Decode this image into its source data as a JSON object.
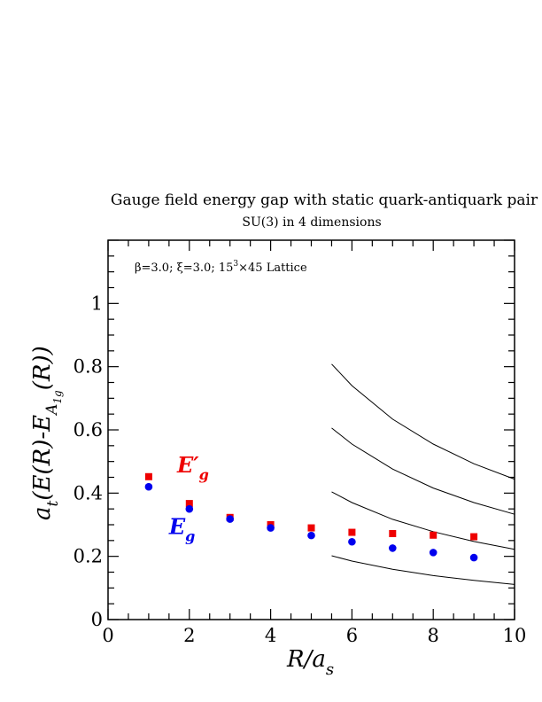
{
  "chart_data": {
    "type": "scatter",
    "title": "Gauge field energy gap with static quark-antiquark pair",
    "subtitle": "SU(3) in 4 dimensions",
    "annotation": {
      "text_pre": "β=3.0;  ξ=3.0; 15",
      "superscript": "3",
      "text_post": "×45 Lattice"
    },
    "xlabel": {
      "main": "R/a",
      "sub": "s"
    },
    "ylabel": {
      "p1": "a",
      "sub_t": "t",
      "p2": "(E(R)-E",
      "sub_A": "A",
      "sub_1": "1",
      "sub_g": "g",
      "p3": "(R))"
    },
    "xlim": [
      0,
      10
    ],
    "ylim": [
      0,
      1.2
    ],
    "x_ticks": [
      0,
      2,
      4,
      6,
      8,
      10
    ],
    "y_ticks": [
      0,
      0.2,
      0.4,
      0.6,
      0.8,
      1
    ],
    "x_tick_labels": [
      "0",
      "2",
      "4",
      "6",
      "8",
      "10"
    ],
    "y_tick_labels": [
      "0",
      "0.2",
      "0.4",
      "0.6",
      "0.8",
      "1"
    ],
    "grid": false,
    "series": [
      {
        "name": "E′g",
        "label_main": "E′",
        "label_sub": "g",
        "color": "#ee0000",
        "marker": "square",
        "label_at": [
          1.7,
          0.465
        ],
        "x": [
          1,
          2,
          3,
          4,
          5,
          6,
          7,
          8,
          9
        ],
        "y": [
          0.452,
          0.367,
          0.323,
          0.3,
          0.29,
          0.276,
          0.272,
          0.267,
          0.262
        ]
      },
      {
        "name": "Eg",
        "label_main": "E",
        "label_sub": "g",
        "color": "#0000ee",
        "marker": "circle",
        "label_at": [
          1.5,
          0.27
        ],
        "x": [
          1,
          2,
          3,
          4,
          5,
          6,
          7,
          8,
          9
        ],
        "y": [
          0.42,
          0.35,
          0.318,
          0.29,
          0.266,
          0.246,
          0.226,
          0.212,
          0.196
        ]
      }
    ],
    "curves": [
      {
        "x": [
          5.5,
          6,
          7,
          8,
          9,
          10
        ],
        "y": [
          0.202,
          0.185,
          0.159,
          0.139,
          0.124,
          0.111
        ]
      },
      {
        "x": [
          5.5,
          6,
          7,
          8,
          9,
          10
        ],
        "y": [
          0.404,
          0.37,
          0.317,
          0.278,
          0.247,
          0.222
        ]
      },
      {
        "x": [
          5.5,
          6,
          7,
          8,
          9,
          10
        ],
        "y": [
          0.606,
          0.555,
          0.476,
          0.416,
          0.37,
          0.333
        ]
      },
      {
        "x": [
          5.5,
          6,
          7,
          8,
          9,
          10
        ],
        "y": [
          0.808,
          0.74,
          0.634,
          0.555,
          0.493,
          0.444
        ]
      }
    ]
  }
}
